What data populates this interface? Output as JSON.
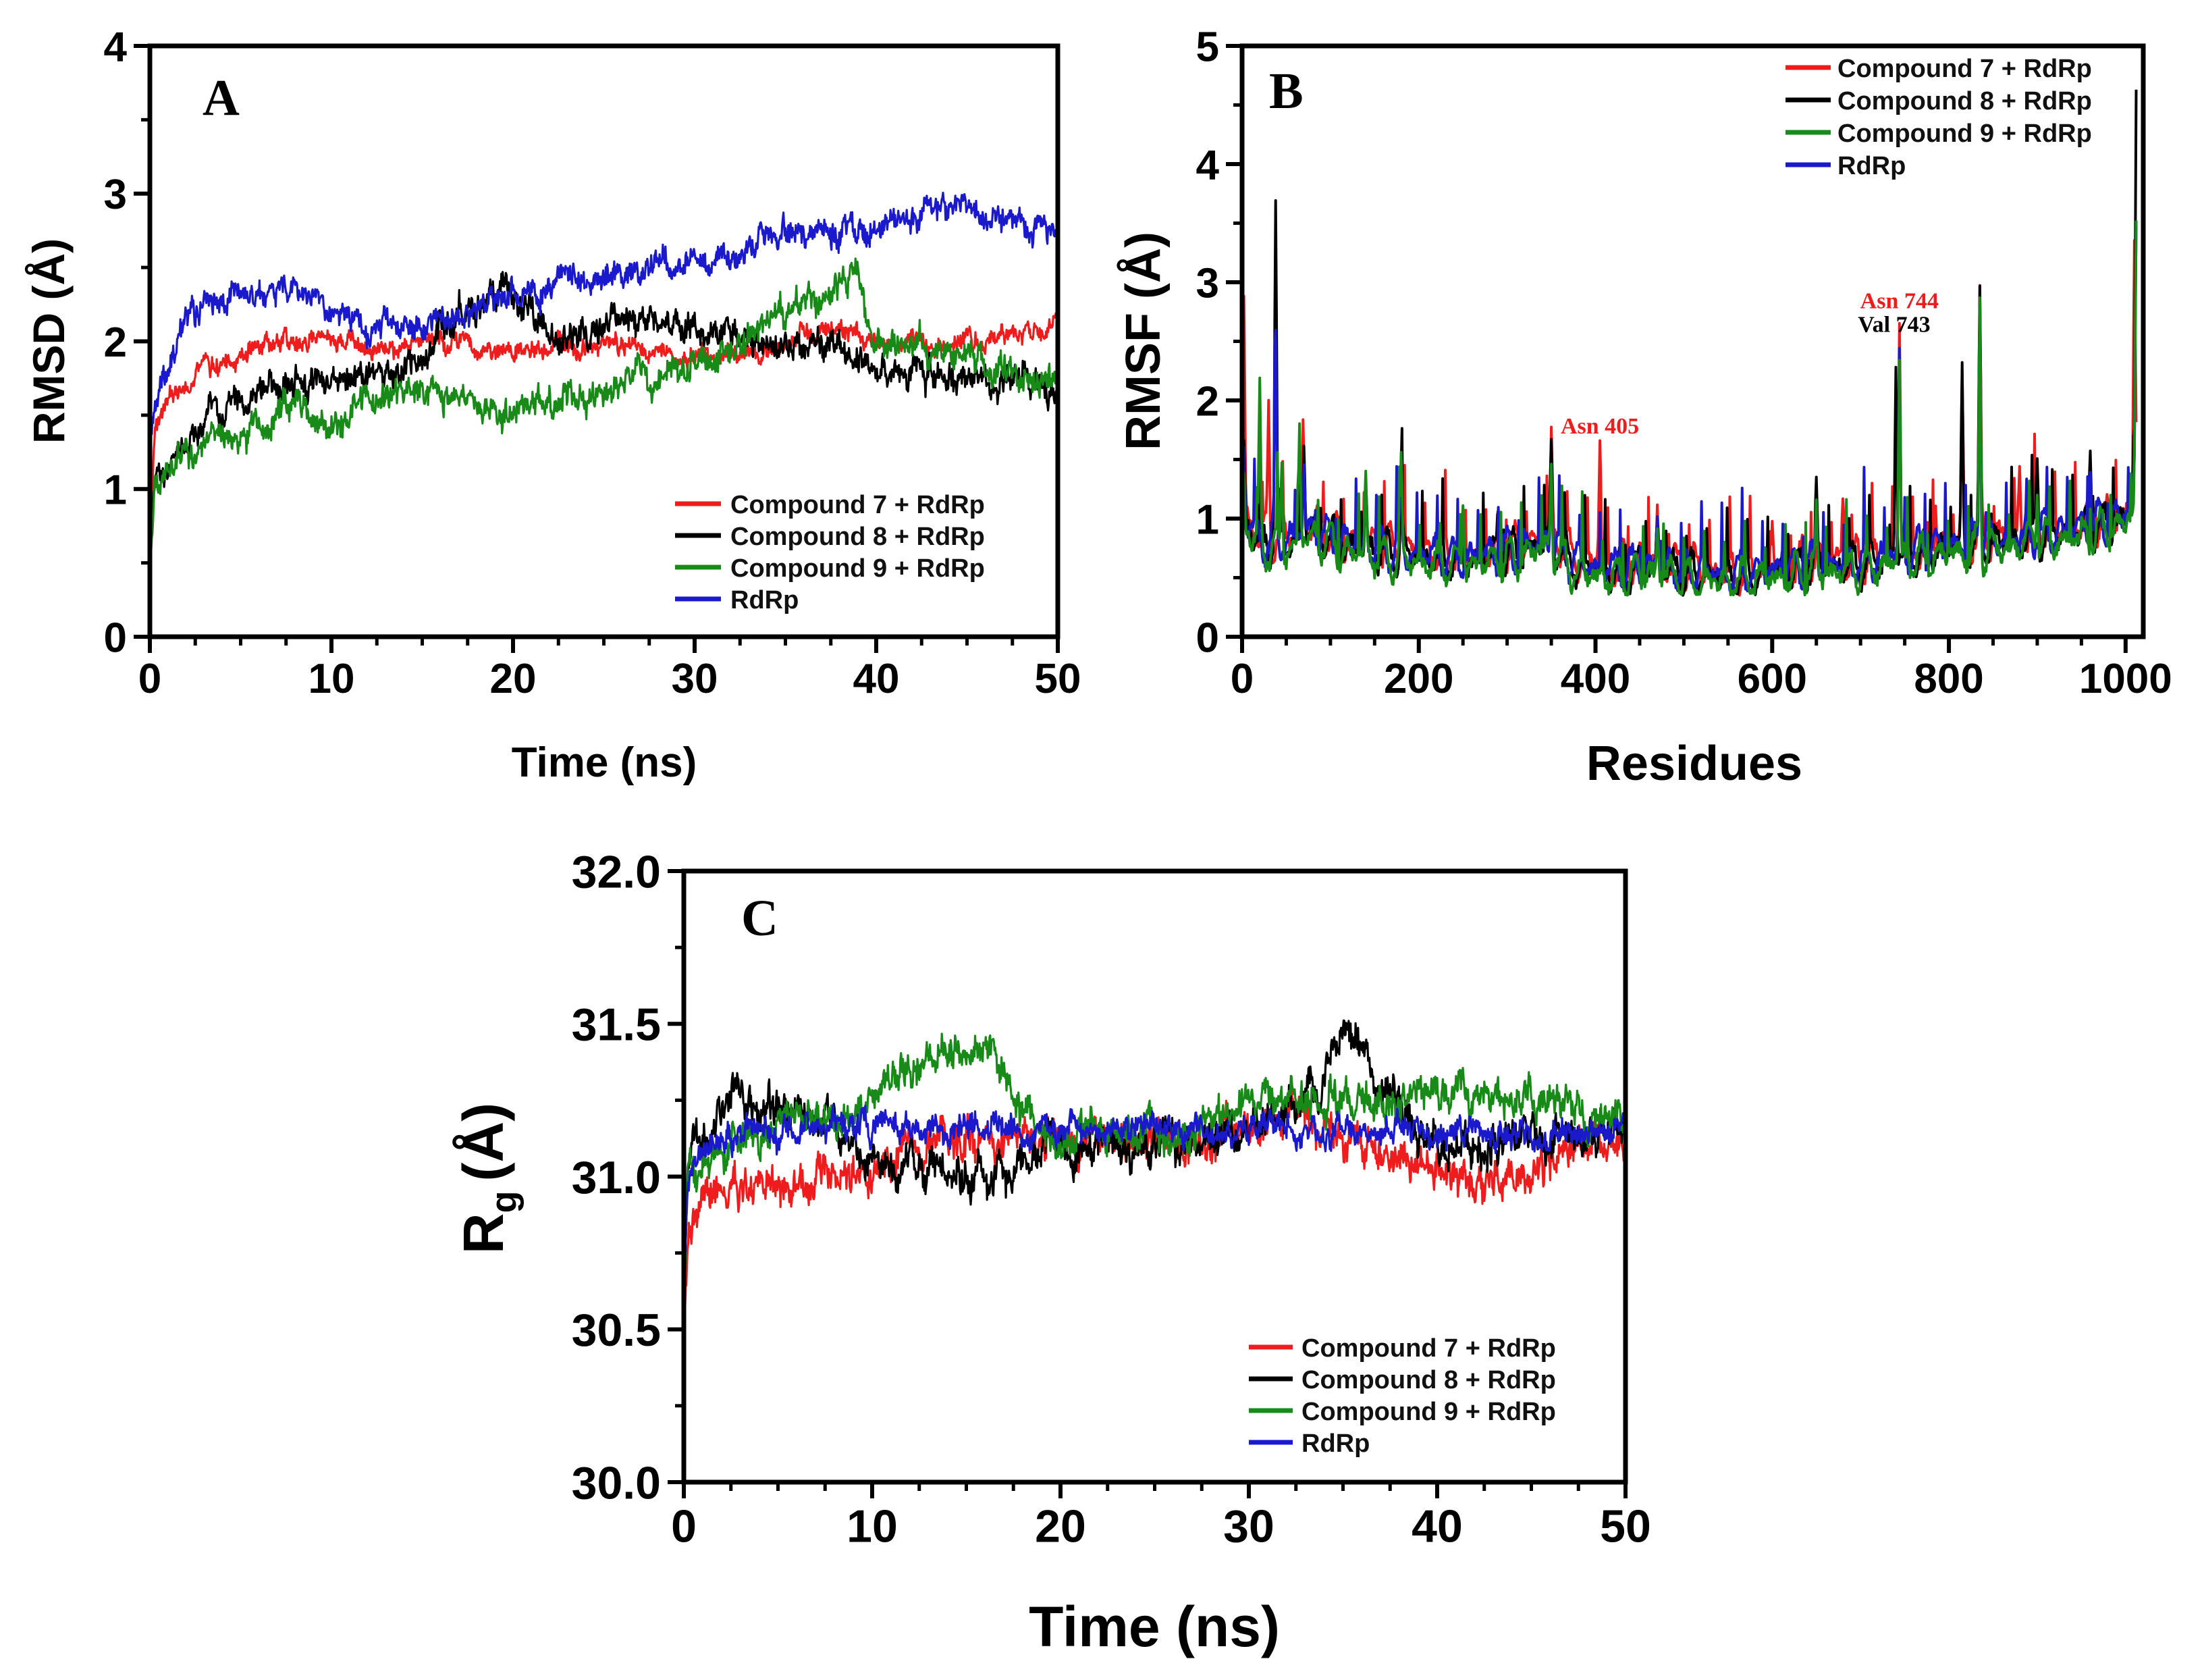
{
  "colors": {
    "compound7": "#ee1c1c",
    "compound8": "#000000",
    "compound9": "#178a17",
    "rdrp": "#1a1acc"
  },
  "chart_data": [
    {
      "id": "A",
      "type": "line",
      "panel_label": "A",
      "xlabel": "Time (ns)",
      "ylabel": "RMSD (Å)",
      "xlim": [
        0,
        50
      ],
      "ylim": [
        0,
        4
      ],
      "xticks": [
        "0",
        "10",
        "20",
        "30",
        "40",
        "50"
      ],
      "yticks": [
        "0",
        "1",
        "2",
        "3",
        "4"
      ],
      "legend_position": "bottom-right",
      "series": [
        {
          "name": "Compound 7 + RdRp",
          "color": "#ee1c1c",
          "noise": 0.06,
          "x": [
            0,
            0.3,
            1,
            2,
            3,
            5,
            7,
            8,
            10,
            12,
            15,
            18,
            20,
            22,
            25,
            28,
            30,
            33,
            35,
            37,
            40,
            43,
            45,
            48,
            50
          ],
          "y": [
            0.6,
            1.45,
            1.6,
            1.7,
            1.8,
            1.9,
            1.98,
            2.02,
            1.98,
            1.95,
            1.98,
            2.0,
            1.95,
            1.95,
            1.97,
            1.92,
            1.9,
            1.9,
            2.0,
            2.1,
            2.0,
            1.95,
            2.0,
            2.05,
            2.08
          ]
        },
        {
          "name": "Compound 8 + RdRp",
          "color": "#000000",
          "noise": 0.09,
          "x": [
            0,
            0.3,
            1,
            3,
            5,
            8,
            10,
            12,
            15,
            17,
            18,
            20,
            22,
            25,
            27,
            30,
            33,
            35,
            38,
            40,
            43,
            45,
            48,
            50
          ],
          "y": [
            0.55,
            1.1,
            1.2,
            1.45,
            1.6,
            1.72,
            1.75,
            1.8,
            1.9,
            2.2,
            2.3,
            2.25,
            2.05,
            2.1,
            2.15,
            2.05,
            2.0,
            2.0,
            1.95,
            1.82,
            1.78,
            1.72,
            1.72,
            1.7
          ]
        },
        {
          "name": "Compound 9 + RdRp",
          "color": "#178a17",
          "noise": 0.09,
          "x": [
            0,
            0.3,
            1,
            3,
            5,
            8,
            10,
            12,
            15,
            18,
            20,
            22,
            25,
            27,
            30,
            32,
            34,
            36,
            38,
            39,
            40,
            42,
            45,
            48,
            50
          ],
          "y": [
            0.5,
            1.0,
            1.15,
            1.3,
            1.4,
            1.55,
            1.48,
            1.6,
            1.7,
            1.6,
            1.55,
            1.6,
            1.65,
            1.8,
            1.85,
            1.9,
            2.15,
            2.3,
            2.4,
            2.45,
            2.0,
            1.9,
            1.85,
            1.8,
            1.75
          ]
        },
        {
          "name": "RdRp",
          "color": "#1a1acc",
          "noise": 0.08,
          "x": [
            0,
            0.3,
            1,
            2,
            4,
            6,
            8,
            10,
            12,
            15,
            18,
            20,
            22,
            25,
            28,
            30,
            32,
            35,
            38,
            40,
            42,
            44,
            46,
            48,
            50
          ],
          "y": [
            1.3,
            1.6,
            1.85,
            2.2,
            2.3,
            2.3,
            2.35,
            2.25,
            2.1,
            2.15,
            2.25,
            2.3,
            2.4,
            2.45,
            2.5,
            2.5,
            2.55,
            2.75,
            2.75,
            2.8,
            2.85,
            2.9,
            2.85,
            2.8,
            2.75
          ]
        }
      ]
    },
    {
      "id": "B",
      "type": "line",
      "panel_label": "B",
      "xlabel": "Residues",
      "ylabel": "RMSF (Å)",
      "xlim": [
        0,
        1020
      ],
      "ylim": [
        0,
        5
      ],
      "xticks": [
        "0",
        "200",
        "400",
        "600",
        "800",
        "1000"
      ],
      "yticks": [
        "0",
        "1",
        "2",
        "3",
        "4",
        "5"
      ],
      "legend_position": "top-right",
      "annotations": [
        {
          "text": "Asn 405",
          "color": "#ee1c1c",
          "x": 405,
          "y": 1.72
        },
        {
          "text": "Asn 744",
          "color": "#ee1c1c",
          "x": 744,
          "y": 2.78
        },
        {
          "text": "Val 743",
          "color": "#000000",
          "x": 738,
          "y": 2.58
        }
      ],
      "base_profile": {
        "x": [
          0,
          20,
          50,
          80,
          120,
          160,
          200,
          260,
          300,
          350,
          380,
          420,
          460,
          500,
          550,
          600,
          650,
          700,
          760,
          800,
          850,
          900,
          950,
          1000,
          1012
        ],
        "y": [
          1.0,
          0.8,
          0.8,
          0.9,
          0.75,
          0.72,
          0.68,
          0.65,
          0.7,
          0.8,
          0.6,
          0.55,
          0.6,
          0.55,
          0.5,
          0.55,
          0.6,
          0.62,
          0.7,
          0.75,
          0.8,
          0.85,
          0.9,
          1.0,
          1.2
        ]
      },
      "series": [
        {
          "name": "Compound 7 + RdRp",
          "color": "#ee1c1c",
          "offset": 0.05,
          "peaks": [
            [
              2,
              2.8
            ],
            [
              30,
              1.9
            ],
            [
              70,
              1.5
            ],
            [
              140,
              1.2
            ],
            [
              180,
              1.3
            ],
            [
              350,
              1.55
            ],
            [
              405,
              1.62
            ],
            [
              470,
              1.0
            ],
            [
              600,
              0.9
            ],
            [
              680,
              1.2
            ],
            [
              744,
              2.7
            ],
            [
              785,
              1.2
            ],
            [
              815,
              2.1
            ],
            [
              835,
              2.7
            ],
            [
              880,
              1.3
            ],
            [
              1010,
              3.3
            ]
          ]
        },
        {
          "name": "Compound 8 + RdRp",
          "color": "#000000",
          "offset": 0.0,
          "peaks": [
            [
              2,
              1.7
            ],
            [
              38,
              3.68
            ],
            [
              70,
              1.6
            ],
            [
              140,
              1.3
            ],
            [
              180,
              1.4
            ],
            [
              290,
              1.1
            ],
            [
              350,
              1.65
            ],
            [
              470,
              1.0
            ],
            [
              650,
              1.2
            ],
            [
              740,
              2.35
            ],
            [
              815,
              2.2
            ],
            [
              835,
              2.8
            ],
            [
              900,
              1.6
            ],
            [
              960,
              1.6
            ],
            [
              1012,
              4.55
            ]
          ]
        },
        {
          "name": "Compound 9 + RdRp",
          "color": "#178a17",
          "offset": -0.05,
          "peaks": [
            [
              2,
              1.4
            ],
            [
              20,
              2.1
            ],
            [
              45,
              1.6
            ],
            [
              65,
              1.8
            ],
            [
              140,
              1.35
            ],
            [
              180,
              1.45
            ],
            [
              250,
              1.3
            ],
            [
              350,
              1.6
            ],
            [
              470,
              0.95
            ],
            [
              650,
              1.1
            ],
            [
              744,
              2.4
            ],
            [
              835,
              2.92
            ],
            [
              900,
              1.4
            ],
            [
              1012,
              3.45
            ]
          ]
        },
        {
          "name": "RdRp",
          "color": "#1a1acc",
          "offset": 0.02,
          "peaks": [
            [
              2,
              1.6
            ],
            [
              38,
              2.45
            ],
            [
              70,
              1.5
            ],
            [
              140,
              1.25
            ],
            [
              180,
              1.35
            ],
            [
              350,
              1.5
            ],
            [
              470,
              1.0
            ],
            [
              650,
              1.15
            ],
            [
              744,
              2.3
            ],
            [
              835,
              2.6
            ],
            [
              960,
              1.5
            ],
            [
              1012,
              3.4
            ]
          ]
        }
      ]
    },
    {
      "id": "C",
      "type": "line",
      "panel_label": "C",
      "xlabel": "Time (ns)",
      "ylabel_main": "R",
      "ylabel_sub": "g",
      "ylabel_rest": "(Å)",
      "xlim": [
        0,
        50
      ],
      "ylim": [
        30.0,
        32.0
      ],
      "xticks": [
        "0",
        "10",
        "20",
        "30",
        "40",
        "50"
      ],
      "yticks": [
        "30.0",
        "30.5",
        "31.0",
        "31.5",
        "32.0"
      ],
      "legend_position": "bottom-right",
      "series": [
        {
          "name": "Compound 7 + RdRp",
          "color": "#ee1c1c",
          "noise": 0.055,
          "x": [
            0,
            0.2,
            1,
            2,
            5,
            8,
            10,
            13,
            15,
            18,
            20,
            22,
            25,
            28,
            30,
            32,
            34,
            36,
            38,
            40,
            42,
            44,
            46,
            48,
            50
          ],
          "y": [
            30.35,
            30.8,
            30.92,
            30.95,
            31.0,
            31.0,
            31.02,
            31.08,
            31.12,
            31.12,
            31.12,
            31.13,
            31.12,
            31.13,
            31.12,
            31.2,
            31.15,
            31.1,
            31.05,
            31.02,
            31.0,
            31.0,
            31.05,
            31.08,
            31.1
          ]
        },
        {
          "name": "Compound 8 + RdRp",
          "color": "#000000",
          "noise": 0.055,
          "x": [
            0,
            0.2,
            1,
            2.5,
            4,
            6,
            8,
            10,
            12,
            14,
            16,
            18,
            20,
            23,
            26,
            29,
            32,
            34,
            35,
            37,
            39,
            41,
            44,
            47,
            50
          ],
          "y": [
            30.55,
            31.0,
            31.1,
            31.3,
            31.2,
            31.2,
            31.15,
            31.05,
            31.05,
            31.0,
            31.0,
            31.05,
            31.1,
            31.1,
            31.1,
            31.12,
            31.2,
            31.35,
            31.42,
            31.35,
            31.15,
            31.12,
            31.12,
            31.15,
            31.15
          ]
        },
        {
          "name": "Compound 9 + RdRp",
          "color": "#178a17",
          "noise": 0.05,
          "x": [
            0,
            0.2,
            1,
            3,
            6,
            9,
            11,
            13,
            15,
            16,
            17,
            18,
            20,
            23,
            26,
            29,
            31,
            34,
            37,
            40,
            43,
            46,
            48,
            50
          ],
          "y": [
            30.6,
            31.0,
            31.05,
            31.15,
            31.18,
            31.2,
            31.3,
            31.38,
            31.42,
            31.45,
            31.35,
            31.2,
            31.15,
            31.15,
            31.12,
            31.2,
            31.28,
            31.25,
            31.25,
            31.28,
            31.25,
            31.25,
            31.2,
            31.18
          ]
        },
        {
          "name": "RdRp",
          "color": "#1a1acc",
          "noise": 0.04,
          "x": [
            0,
            0.2,
            1,
            5,
            10,
            15,
            20,
            25,
            30,
            35,
            40,
            45,
            50
          ],
          "y": [
            30.6,
            31.0,
            31.1,
            31.15,
            31.15,
            31.16,
            31.15,
            31.15,
            31.16,
            31.16,
            31.15,
            31.15,
            31.15
          ]
        }
      ]
    }
  ]
}
